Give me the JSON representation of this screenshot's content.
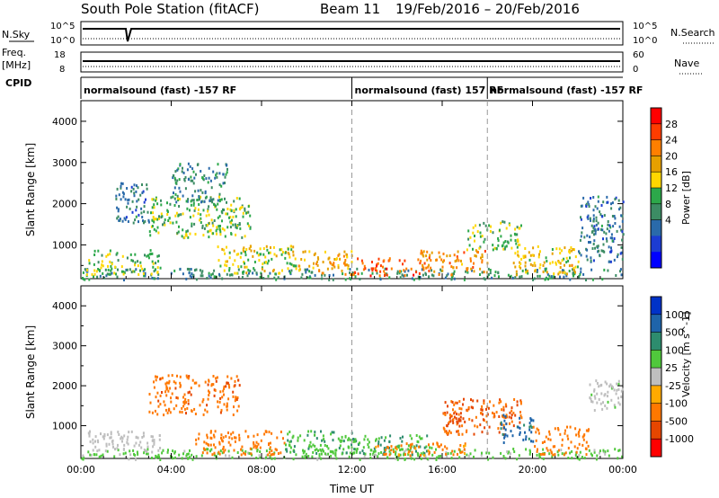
{
  "header": {
    "station": "South Pole Station (fitACF)",
    "beam": "Beam 11",
    "date_range": "19/Feb/2016 – 20/Feb/2016"
  },
  "top_panels": {
    "nsky_label": "N.Sky",
    "nsky_ticks": [
      "10^5",
      "10^0"
    ],
    "nsearch_label": "N.Search",
    "freq_label_1": "Freq.",
    "freq_label_2": "[MHz]",
    "freq_ticks": [
      "18",
      "8"
    ],
    "nave_ticks": [
      "60",
      "0"
    ],
    "nave_label": "Nave",
    "cpid_label": "CPID",
    "cpid_segments": [
      {
        "start": 0,
        "text": "normalsound (fast) -157 RF"
      },
      {
        "start": 12,
        "text": "normalsound (fast) 157 RF"
      },
      {
        "start": 18,
        "text": "normalsound (fast) -157 RF"
      }
    ]
  },
  "power_colorbar": {
    "label": "Power [dB]",
    "ticks": [
      "28",
      "24",
      "20",
      "16",
      "12",
      "8",
      "4"
    ],
    "colors": [
      "#ff0000",
      "#ff3c00",
      "#ff7f00",
      "#e6a000",
      "#ffd700",
      "#2ca84a",
      "#3c8c64",
      "#2a6aaa",
      "#1c3cd2",
      "#0000ff"
    ]
  },
  "velocity_colorbar": {
    "label": "Velocity [m s^-1]",
    "ticks": [
      "1000",
      "500",
      "100",
      "25",
      "-25",
      "-100",
      "-500",
      "-1000"
    ],
    "colors": [
      "#0032c8",
      "#1e64aa",
      "#2d8c6e",
      "#50c83c",
      "#bebebe",
      "#ffaa00",
      "#ff7800",
      "#e64600",
      "#ff0000"
    ]
  },
  "chart_data": [
    {
      "type": "heatmap",
      "title": "Power",
      "ylabel": "Slant Range [km]",
      "xlabel": "",
      "xlim": [
        0,
        24
      ],
      "ylim": [
        180,
        4500
      ],
      "yticks": [
        1000,
        2000,
        3000,
        4000
      ],
      "xticks": [
        0,
        4,
        8,
        12,
        16,
        20,
        24
      ],
      "xticklabels": [
        "00:00",
        "04:00",
        "08:00",
        "12:00",
        "16:00",
        "20:00",
        "00:00"
      ],
      "cpid_change_hours": [
        12,
        18
      ],
      "regions": [
        {
          "t": [
            0,
            24
          ],
          "r": [
            180,
            450
          ],
          "value": 10
        },
        {
          "t": [
            0.2,
            3.5
          ],
          "r": [
            300,
            900
          ],
          "value": 14
        },
        {
          "t": [
            1.5,
            3.0
          ],
          "r": [
            1500,
            2600
          ],
          "value": 8
        },
        {
          "t": [
            3.0,
            7.5
          ],
          "r": [
            1200,
            2200
          ],
          "value": 14
        },
        {
          "t": [
            4.0,
            6.5
          ],
          "r": [
            2000,
            3000
          ],
          "value": 9
        },
        {
          "t": [
            6.0,
            9.5
          ],
          "r": [
            300,
            1000
          ],
          "value": 16
        },
        {
          "t": [
            9.5,
            12.0
          ],
          "r": [
            300,
            900
          ],
          "value": 20
        },
        {
          "t": [
            12.0,
            15.0
          ],
          "r": [
            280,
            700
          ],
          "value": 26
        },
        {
          "t": [
            15.0,
            18.0
          ],
          "r": [
            300,
            900
          ],
          "value": 22
        },
        {
          "t": [
            17.0,
            19.5
          ],
          "r": [
            900,
            1600
          ],
          "value": 14
        },
        {
          "t": [
            19.0,
            22.0
          ],
          "r": [
            300,
            1000
          ],
          "value": 18
        },
        {
          "t": [
            22.0,
            24.0
          ],
          "r": [
            600,
            2200
          ],
          "value": 8
        }
      ]
    },
    {
      "type": "heatmap",
      "title": "Velocity",
      "ylabel": "Slant Range [km]",
      "xlabel": "Time UT",
      "xlim": [
        0,
        24
      ],
      "ylim": [
        180,
        4500
      ],
      "yticks": [
        1000,
        2000,
        3000,
        4000
      ],
      "xticks": [
        0,
        4,
        8,
        12,
        16,
        20,
        24
      ],
      "xticklabels": [
        "00:00",
        "04:00",
        "08:00",
        "12:00",
        "16:00",
        "20:00",
        "00:00"
      ],
      "cpid_change_hours": [
        12,
        18
      ],
      "regions": [
        {
          "t": [
            0,
            24
          ],
          "r": [
            180,
            450
          ],
          "value": 50
        },
        {
          "t": [
            0.3,
            3.5
          ],
          "r": [
            400,
            900
          ],
          "value": 0
        },
        {
          "t": [
            3.0,
            7.0
          ],
          "r": [
            1300,
            2300
          ],
          "value": -400
        },
        {
          "t": [
            5.0,
            9.0
          ],
          "r": [
            300,
            900
          ],
          "value": -200
        },
        {
          "t": [
            9.0,
            12.0
          ],
          "r": [
            300,
            900
          ],
          "value": 80
        },
        {
          "t": [
            12.0,
            15.5
          ],
          "r": [
            280,
            800
          ],
          "value": 90
        },
        {
          "t": [
            13.0,
            17.0
          ],
          "r": [
            280,
            600
          ],
          "value": -150
        },
        {
          "t": [
            16.0,
            19.5
          ],
          "r": [
            800,
            1700
          ],
          "value": -500
        },
        {
          "t": [
            18.5,
            20.0
          ],
          "r": [
            600,
            1300
          ],
          "value": 600
        },
        {
          "t": [
            20.0,
            22.5
          ],
          "r": [
            300,
            1000
          ],
          "value": -200
        },
        {
          "t": [
            22.5,
            24.0
          ],
          "r": [
            1400,
            2200
          ],
          "value": 10
        }
      ]
    }
  ]
}
